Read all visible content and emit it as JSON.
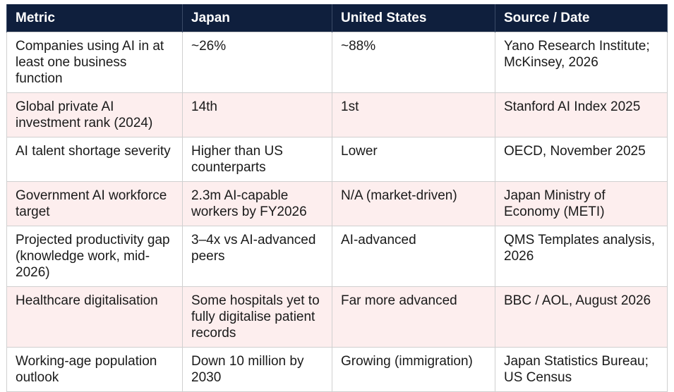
{
  "table": {
    "headers": [
      "Metric",
      "Japan",
      "United States",
      "Source / Date"
    ],
    "rows": [
      [
        "Companies using AI in at least one business function",
        "~26%",
        "~88%",
        "Yano Research Institute; McKinsey, 2026"
      ],
      [
        "Global private AI investment rank (2024)",
        "14th",
        "1st",
        "Stanford AI Index 2025"
      ],
      [
        "AI talent shortage severity",
        "Higher than US counterparts",
        "Lower",
        "OECD, November 2025"
      ],
      [
        "Government AI workforce target",
        "2.3m AI-capable workers by FY2026",
        "N/A (market-driven)",
        "Japan Ministry of Economy (METI)"
      ],
      [
        "Projected productivity gap (knowledge work, mid-2026)",
        "3–4x vs AI-advanced peers",
        "AI-advanced",
        "QMS Templates analysis, 2026"
      ],
      [
        "Healthcare digitalisation",
        "Some hospitals yet to fully digitalise patient records",
        "Far more advanced",
        "BBC / AOL, August 2026"
      ],
      [
        "Working-age population outlook",
        "Down 10 million by 2030",
        "Growing (immigration)",
        "Japan Statistics Bureau; US Census"
      ]
    ]
  }
}
